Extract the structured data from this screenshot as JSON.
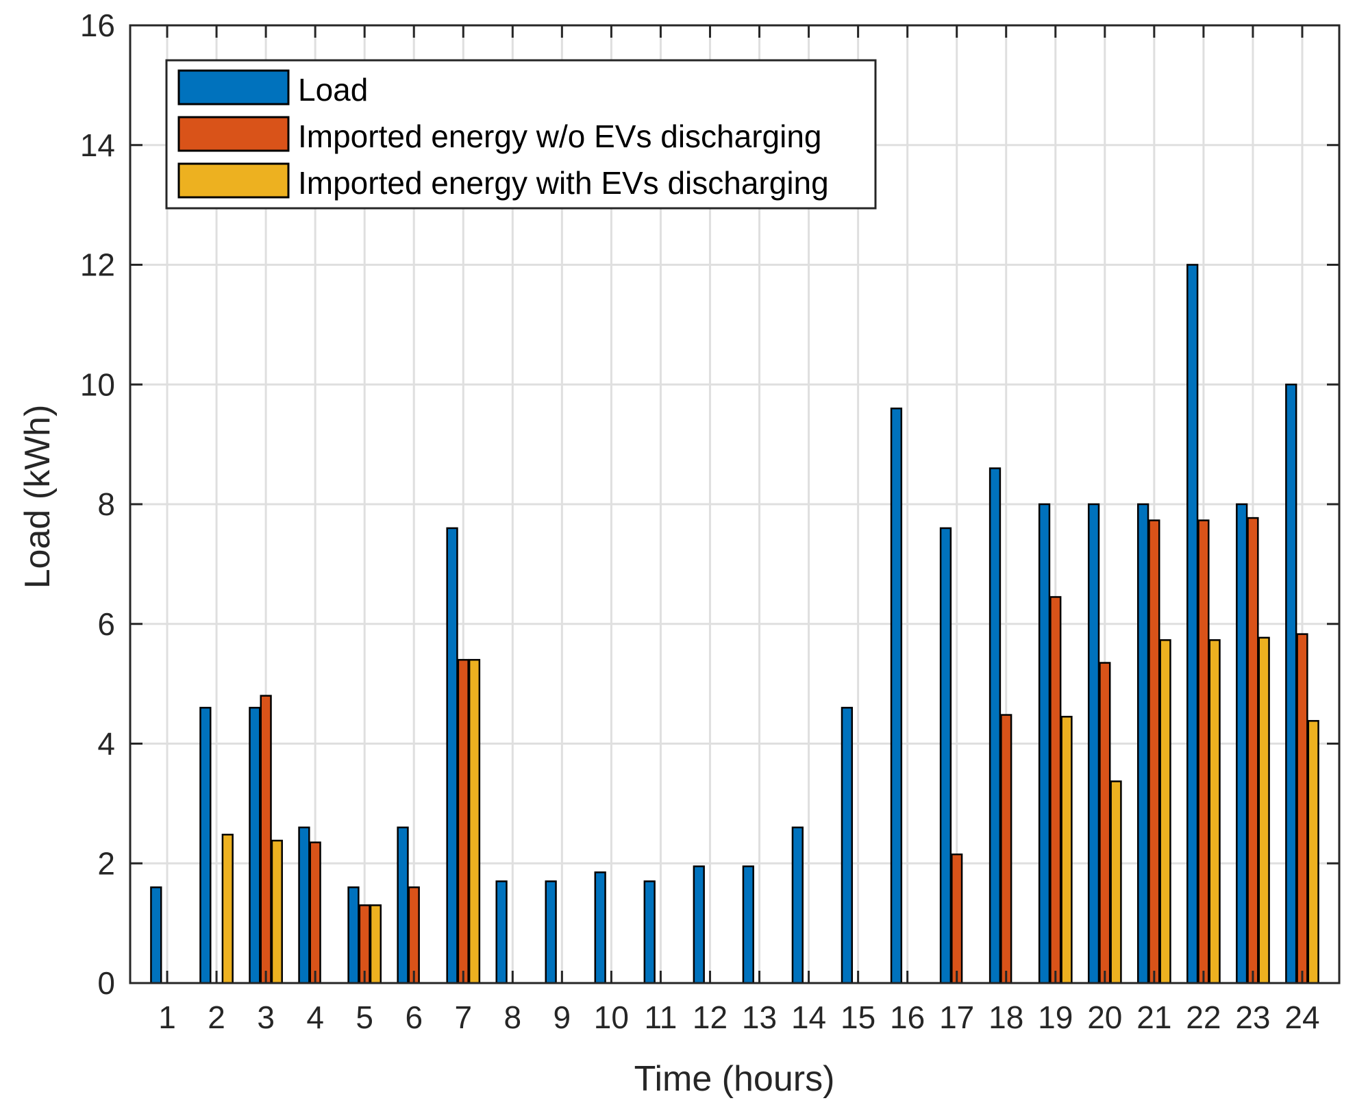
{
  "chart_data": {
    "type": "bar",
    "title": "",
    "xlabel": "Time (hours)",
    "ylabel": "Load (kWh)",
    "ylim": [
      0,
      16
    ],
    "yticks": [
      0,
      2,
      4,
      6,
      8,
      10,
      12,
      14,
      16
    ],
    "grid": true,
    "legend_position": "top-left",
    "categories": [
      "1",
      "2",
      "3",
      "4",
      "5",
      "6",
      "7",
      "8",
      "9",
      "10",
      "11",
      "12",
      "13",
      "14",
      "15",
      "16",
      "17",
      "18",
      "19",
      "20",
      "21",
      "22",
      "23",
      "24"
    ],
    "series": [
      {
        "name": "Load",
        "color": "#0072BD",
        "values": [
          1.6,
          4.6,
          4.6,
          2.6,
          1.6,
          2.6,
          7.6,
          1.7,
          1.7,
          1.85,
          1.7,
          1.95,
          1.95,
          2.6,
          4.6,
          9.6,
          7.6,
          8.6,
          8.0,
          8.0,
          8.0,
          12.0,
          8.0,
          10.0
        ]
      },
      {
        "name": "Imported energy w/o EVs discharging",
        "color": "#D95319",
        "values": [
          0,
          0,
          4.8,
          2.35,
          1.3,
          1.6,
          5.4,
          0,
          0,
          0,
          0,
          0,
          0,
          0,
          0,
          0,
          2.15,
          4.48,
          6.45,
          5.35,
          7.73,
          7.73,
          7.77,
          5.83
        ]
      },
      {
        "name": "Imported energy with EVs discharging",
        "color": "#EDB120",
        "values": [
          0,
          2.48,
          2.38,
          0,
          1.3,
          0,
          5.4,
          0,
          0,
          0,
          0,
          0,
          0,
          0,
          0,
          0,
          0,
          0,
          4.45,
          3.37,
          5.73,
          5.73,
          5.77,
          4.38
        ]
      }
    ]
  }
}
